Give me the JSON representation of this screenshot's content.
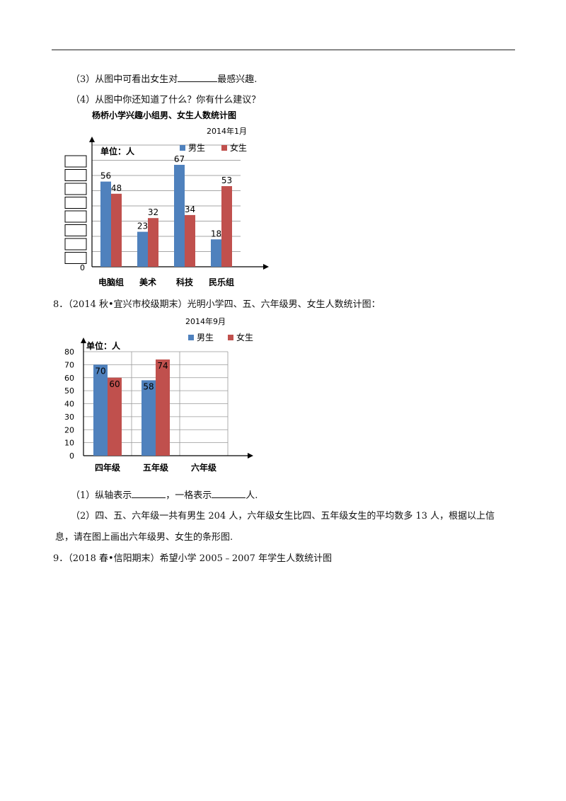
{
  "questions": {
    "q7_sub3": {
      "before": "（3）从图中可看出女生对",
      "after": "最感兴趣."
    },
    "q7_sub4": "（4）从图中你还知道了什么？你有什么建议？",
    "q8_header": "8．（2014 秋•宜兴市校级期末）光明小学四、五、六年级男、女生人数统计图：",
    "q8_sub1": {
      "before": "（1）纵轴表示",
      "middle": "，一格表示",
      "after": "人."
    },
    "q8_sub2_line1": "（2）四、五、六年级一共有男生 204 人，六年级女生比四、五年级女生的平均数多 13 人，根据以上信",
    "q8_sub2_line2": "息，请在图上画出六年级男、女生的条形图.",
    "q9_header": "9．（2018 春•信阳期末）希望小学 2005﹣2007 年学生人数统计图"
  },
  "colors": {
    "boys": "#4f81bd",
    "girls": "#c0504d"
  },
  "chart_data": [
    {
      "type": "bar",
      "title": "杨桥小学兴趣小组男、女生人数统计图",
      "subtitle": "2014年1月",
      "unit_label": "单位：人",
      "y_axis_tick_labels": [
        "0"
      ],
      "y_axis_note": "y-axis tick boxes are blank (to be filled in)",
      "legend": [
        "男生",
        "女生"
      ],
      "legend_position": "top-right",
      "categories": [
        "电脑组",
        "美术",
        "科技",
        "民乐组"
      ],
      "series": [
        {
          "name": "男生",
          "values": [
            56,
            23,
            67,
            18
          ]
        },
        {
          "name": "女生",
          "values": [
            48,
            32,
            34,
            53
          ]
        }
      ],
      "ylim": [
        0,
        80
      ],
      "grid": true
    },
    {
      "type": "bar",
      "title": "",
      "subtitle": "2014年9月",
      "unit_label": "单位：人",
      "legend": [
        "男生",
        "女生"
      ],
      "legend_position": "top-right",
      "categories": [
        "四年级",
        "五年级",
        "六年级"
      ],
      "series": [
        {
          "name": "男生",
          "values": [
            70,
            58,
            null
          ]
        },
        {
          "name": "女生",
          "values": [
            60,
            74,
            null
          ]
        }
      ],
      "y_ticks": [
        "0",
        "10",
        "20",
        "30",
        "40",
        "50",
        "60",
        "70",
        "80"
      ],
      "ylim": [
        0,
        80
      ],
      "grid": true
    }
  ]
}
